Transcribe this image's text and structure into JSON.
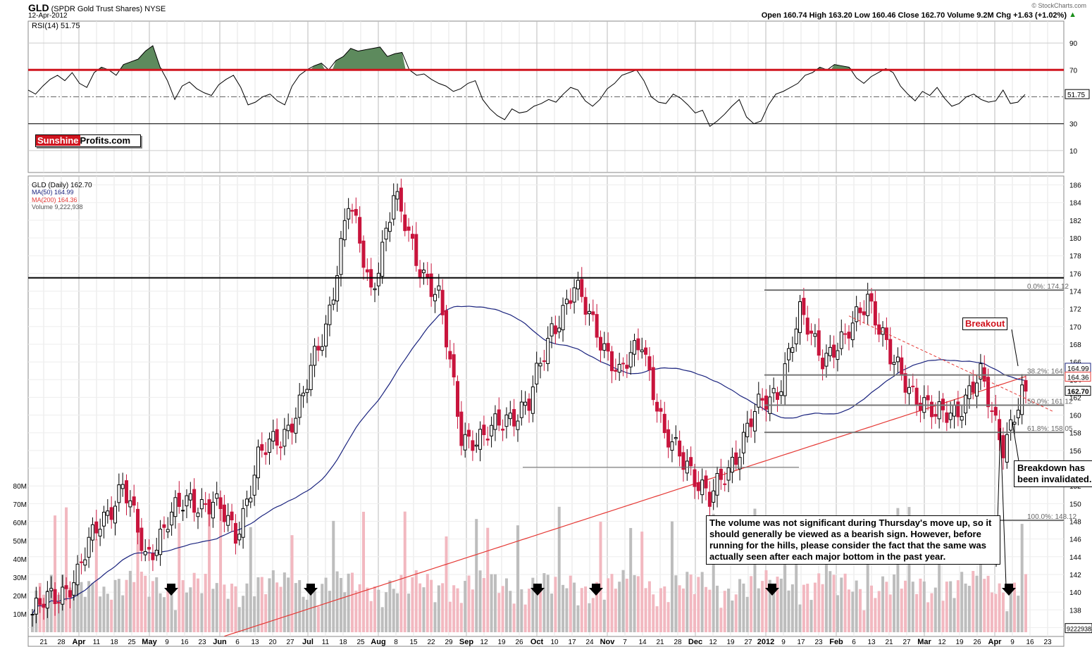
{
  "header": {
    "symbol": "GLD",
    "name": "(SPDR Gold Trust Shares)",
    "exchange": "NYSE",
    "date": "12-Apr-2012",
    "copyright": "© StockCharts.com",
    "quote": "Open 160.74  High 163.20  Low 160.46  Close 162.70  Volume 9.2M  Chg +1.63 (+1.02%)",
    "quote_arrow": "▲"
  },
  "logo": {
    "part1": "Sunshine",
    "part2": "Profits.com"
  },
  "rsi": {
    "label": "RSI(14) 51.75",
    "current_label": "51.75",
    "upper": 70,
    "lower": 30,
    "axis": [
      90,
      70,
      30,
      10
    ],
    "values": [
      55,
      52,
      58,
      63,
      66,
      62,
      68,
      60,
      57,
      68,
      72,
      70,
      66,
      74,
      76,
      78,
      84,
      88,
      72,
      62,
      48,
      58,
      61,
      56,
      53,
      51,
      59,
      63,
      66,
      57,
      44,
      46,
      50,
      52,
      47,
      44,
      58,
      66,
      70,
      73,
      75,
      70,
      77,
      80,
      86,
      84,
      85,
      86,
      87,
      80,
      82,
      83,
      70,
      66,
      67,
      63,
      60,
      58,
      54,
      56,
      60,
      62,
      48,
      41,
      36,
      33,
      41,
      38,
      39,
      43,
      45,
      48,
      46,
      52,
      57,
      55,
      47,
      43,
      48,
      56,
      60,
      66,
      68,
      70,
      62,
      50,
      46,
      45,
      52,
      49,
      44,
      38,
      40,
      28,
      32,
      37,
      43,
      48,
      35,
      30,
      32,
      44,
      52,
      54,
      57,
      60,
      66,
      68,
      72,
      70,
      74,
      73,
      72,
      64,
      60,
      65,
      68,
      71,
      68,
      58,
      52,
      47,
      54,
      51,
      57,
      49,
      43,
      45,
      50,
      52,
      48,
      46,
      47,
      55,
      45,
      46,
      51.75
    ],
    "colors": {
      "line": "#000000",
      "threshold": "#d0141e",
      "fill": "#5d8a5d"
    }
  },
  "price": {
    "legend": {
      "gld": "GLD (Daily) 162.70",
      "ma50": "MA(50) 164.99",
      "ma200": "MA(200) 164.36",
      "volume": "Volume 9,222,938"
    },
    "axis": [
      186,
      184,
      182,
      180,
      178,
      176,
      174,
      172,
      170,
      168,
      166,
      164,
      162,
      160,
      158,
      156,
      154,
      152,
      150,
      148,
      146,
      144,
      142,
      140,
      138,
      136
    ],
    "right_labels": {
      "last": "162.70",
      "ma50": "164.99",
      "ma200": "164.36"
    },
    "horizontal_level": 175.5,
    "fib_levels": [
      {
        "label": "0.0%: 174.12",
        "value": 174.12
      },
      {
        "label": "38.2%: 164.53",
        "value": 164.53
      },
      {
        "label": "50.0%: 161.12",
        "value": 161.12
      },
      {
        "label": "61.8%: 158.05",
        "value": 158.05
      },
      {
        "label": "100.0%: 148.12",
        "value": 148.12
      }
    ],
    "support_154": 154.1,
    "colors": {
      "up": "#000000",
      "down": "#c8143c",
      "ma50": "#1a237e",
      "ma200": "#e53935"
    }
  },
  "volume": {
    "axis": [
      "80M",
      "70M",
      "60M",
      "50M",
      "40M",
      "30M",
      "20M",
      "10M"
    ],
    "last_label": "9222938"
  },
  "xaxis": [
    "21",
    "28",
    "Apr",
    "11",
    "18",
    "25",
    "May",
    "9",
    "16",
    "23",
    "Jun",
    "6",
    "13",
    "20",
    "27",
    "Jul",
    "11",
    "18",
    "25",
    "Aug",
    "8",
    "15",
    "22",
    "29",
    "Sep",
    "12",
    "19",
    "26",
    "Oct",
    "10",
    "17",
    "24",
    "Nov",
    "7",
    "14",
    "21",
    "28",
    "Dec",
    "12",
    "19",
    "27",
    "2012",
    "9",
    "17",
    "23",
    "Feb",
    "6",
    "13",
    "21",
    "27",
    "Mar",
    "12",
    "19",
    "26",
    "Apr",
    "9",
    "16",
    "23"
  ],
  "annotations": {
    "breakout": "Breakout",
    "breakdown": "Breakdown has been invalidated.",
    "volume_note": "The volume was not significant during Thursday's move up, so it should generally be viewed as a bearish sign. However, before running for the hills, please consider the fact that the same was actually seen after each major bottom in the past year."
  },
  "chart_data": {
    "type": "candlestick",
    "title": "GLD (SPDR Gold Trust Shares) NYSE",
    "panels": [
      "RSI(14)",
      "GLD (Daily)",
      "Volume"
    ],
    "close_path": [
      [
        "21 Mar 2011",
        137.5
      ],
      [
        "28 Mar 2011",
        139.5
      ],
      [
        "11 Apr 2011",
        142
      ],
      [
        "25 Apr 2011",
        148
      ],
      [
        "2 May 2011",
        152
      ],
      [
        "9 May 2011",
        144
      ],
      [
        "23 May 2011",
        148
      ],
      [
        "6 Jun 2011",
        150.5
      ],
      [
        "20 Jun 2011",
        150
      ],
      [
        "5 Jul 2011",
        146.5
      ],
      [
        "18 Jul 2011",
        155
      ],
      [
        "1 Aug 2011",
        157.5
      ],
      [
        "8 Aug 2011",
        162
      ],
      [
        "15 Aug 2011",
        170
      ],
      [
        "22 Aug 2011",
        184
      ],
      [
        "29 Aug 2011",
        174
      ],
      [
        "6 Sep 2011",
        184.5
      ],
      [
        "12 Sep 2011",
        178
      ],
      [
        "19 Sep 2011",
        173
      ],
      [
        "26 Sep 2011",
        158
      ],
      [
        "3 Oct 2011",
        157
      ],
      [
        "17 Oct 2011",
        160
      ],
      [
        "24 Oct 2011",
        161
      ],
      [
        "1 Nov 2011",
        170
      ],
      [
        "7 Nov 2011",
        174
      ],
      [
        "14 Nov 2011",
        170
      ],
      [
        "21 Nov 2011",
        164
      ],
      [
        "28 Nov 2011",
        169
      ],
      [
        "12 Dec 2011",
        157
      ],
      [
        "19 Dec 2011",
        155
      ],
      [
        "28 Dec 2011",
        150
      ],
      [
        "3 Jan 2012",
        155
      ],
      [
        "17 Jan 2012",
        160
      ],
      [
        "23 Jan 2012",
        163
      ],
      [
        "1 Feb 2012",
        171
      ],
      [
        "13 Feb 2012",
        167
      ],
      [
        "21 Feb 2012",
        168
      ],
      [
        "27 Feb 2012",
        174
      ],
      [
        "29 Feb 2012",
        166
      ],
      [
        "12 Mar 2012",
        163
      ],
      [
        "19 Mar 2012",
        159.5
      ],
      [
        "26 Mar 2012",
        161
      ],
      [
        "2 Apr 2012",
        164
      ],
      [
        "5 Apr 2012",
        157
      ],
      [
        "12 Apr 2012",
        162.7
      ]
    ],
    "ma50": 164.99,
    "ma200": 164.36,
    "y_range": [
      135,
      187
    ]
  }
}
